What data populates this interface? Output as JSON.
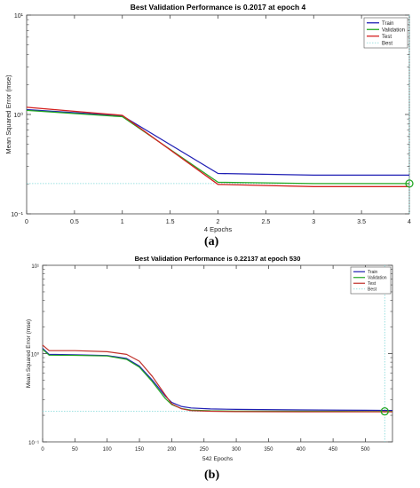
{
  "chart_data": [
    {
      "type": "line",
      "title": "Best Validation Performance is 0.2017 at epoch 4",
      "xlabel": "4 Epochs",
      "ylabel": "Mean Squared Error  (mse)",
      "xlim": [
        0,
        4
      ],
      "ylim": [
        0.1,
        10
      ],
      "yscale": "log",
      "x_ticks": [
        0,
        0.5,
        1,
        1.5,
        2,
        2.5,
        3,
        3.5,
        4
      ],
      "x_tick_labels": [
        "0",
        "0.5",
        "1",
        "1.5",
        "2",
        "2.5",
        "3",
        "3.5",
        "4"
      ],
      "y_ticks": [
        0.1,
        1,
        10
      ],
      "y_tick_labels": [
        "10⁻¹",
        "10⁰",
        "10¹"
      ],
      "grid": false,
      "legend_position": "top-right",
      "series": [
        {
          "name": "Train",
          "color": "#1f1fb4",
          "x": [
            0,
            1,
            2,
            3,
            4
          ],
          "y": [
            1.12,
            0.97,
            0.255,
            0.245,
            0.245
          ]
        },
        {
          "name": "Validation",
          "color": "#22a722",
          "x": [
            0,
            1,
            2,
            3,
            4
          ],
          "y": [
            1.1,
            0.95,
            0.208,
            0.2017,
            0.2017
          ]
        },
        {
          "name": "Test",
          "color": "#d42020",
          "x": [
            0,
            1,
            2,
            3,
            4
          ],
          "y": [
            1.18,
            0.98,
            0.198,
            0.188,
            0.188
          ]
        }
      ],
      "best": {
        "name": "Best",
        "x": 4,
        "y": 0.2017,
        "color": "#22a722"
      }
    },
    {
      "type": "line",
      "title": "Best Validation Performance is 0.22137 at epoch 530",
      "xlabel": "542 Epochs",
      "ylabel": "Mean Squared Error  (mse)",
      "xlim": [
        0,
        542
      ],
      "ylim": [
        0.1,
        10
      ],
      "yscale": "log",
      "x_ticks": [
        0,
        50,
        100,
        150,
        200,
        250,
        300,
        350,
        400,
        450,
        500
      ],
      "x_tick_labels": [
        "0",
        "50",
        "100",
        "150",
        "200",
        "250",
        "300",
        "350",
        "400",
        "450",
        "500"
      ],
      "y_ticks": [
        0.1,
        1,
        10
      ],
      "y_tick_labels": [
        "10⁻¹",
        "10⁰",
        "10¹"
      ],
      "grid": false,
      "legend_position": "top-right",
      "series": [
        {
          "name": "Train",
          "color": "#1f1fb4",
          "x": [
            0,
            10,
            50,
            100,
            130,
            150,
            170,
            190,
            200,
            215,
            230,
            260,
            300,
            400,
            500,
            542
          ],
          "y": [
            1.15,
            0.98,
            0.97,
            0.95,
            0.88,
            0.72,
            0.5,
            0.33,
            0.28,
            0.252,
            0.242,
            0.236,
            0.233,
            0.23,
            0.228,
            0.227
          ]
        },
        {
          "name": "Validation",
          "color": "#22a722",
          "x": [
            0,
            10,
            50,
            100,
            130,
            150,
            170,
            190,
            200,
            215,
            230,
            260,
            300,
            400,
            500,
            542
          ],
          "y": [
            1.12,
            0.96,
            0.955,
            0.94,
            0.86,
            0.7,
            0.48,
            0.31,
            0.265,
            0.238,
            0.229,
            0.225,
            0.223,
            0.222,
            0.2214,
            0.2214
          ]
        },
        {
          "name": "Test",
          "color": "#c0302a",
          "x": [
            0,
            10,
            50,
            100,
            130,
            150,
            170,
            190,
            200,
            215,
            230,
            260,
            300,
            400,
            500,
            542
          ],
          "y": [
            1.25,
            1.08,
            1.08,
            1.05,
            0.98,
            0.82,
            0.55,
            0.34,
            0.27,
            0.237,
            0.226,
            0.222,
            0.22,
            0.219,
            0.219,
            0.219
          ]
        }
      ],
      "best": {
        "name": "Best",
        "x": 530,
        "y": 0.22137,
        "color": "#22a722"
      }
    }
  ],
  "captions": {
    "a": "(a)",
    "b": "(b)"
  }
}
